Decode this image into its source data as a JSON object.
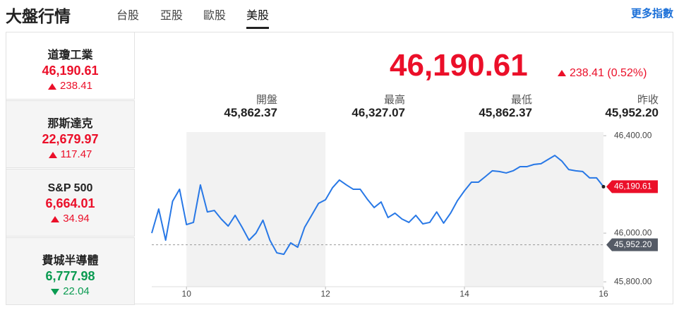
{
  "header": {
    "title": "大盤行情",
    "tabs": [
      "台股",
      "亞股",
      "歐股",
      "美股"
    ],
    "active_tab": 3,
    "more": "更多指數"
  },
  "indices": [
    {
      "name": "道瓊工業",
      "value": "46,190.61",
      "change": "238.41",
      "direction": "up"
    },
    {
      "name": "那斯達克",
      "value": "22,679.97",
      "change": "117.47",
      "direction": "up"
    },
    {
      "name": "S&P 500",
      "value": "6,664.01",
      "change": "34.94",
      "direction": "up"
    },
    {
      "name": "費城半導體",
      "value": "6,777.98",
      "change": "22.04",
      "direction": "down"
    }
  ],
  "active_index": 0,
  "quote": {
    "price": "46,190.61",
    "change": "238.41 (0.52%)",
    "direction": "up",
    "stats": [
      {
        "label": "開盤",
        "value": "45,862.37"
      },
      {
        "label": "最高",
        "value": "46,327.07"
      },
      {
        "label": "最低",
        "value": "45,862.37"
      },
      {
        "label": "昨收",
        "value": "45,952.20"
      }
    ]
  },
  "chart_data": {
    "type": "line",
    "x": [
      9.5,
      9.6,
      9.7,
      9.8,
      9.9,
      10.0,
      10.1,
      10.2,
      10.3,
      10.4,
      10.5,
      10.6,
      10.7,
      10.8,
      10.9,
      11.0,
      11.1,
      11.2,
      11.3,
      11.4,
      11.5,
      11.6,
      11.7,
      11.8,
      11.9,
      12.0,
      12.1,
      12.2,
      12.3,
      12.4,
      12.5,
      12.6,
      12.7,
      12.8,
      12.9,
      13.0,
      13.1,
      13.2,
      13.3,
      13.4,
      13.5,
      13.6,
      13.7,
      13.8,
      13.9,
      14.0,
      14.1,
      14.2,
      14.3,
      14.4,
      14.5,
      14.6,
      14.7,
      14.8,
      14.9,
      15.0,
      15.1,
      15.2,
      15.3,
      15.4,
      15.5,
      15.6,
      15.7,
      15.8,
      15.9,
      16.0
    ],
    "series": [
      {
        "color": "#2878e6",
        "values": [
          46000,
          46099,
          45971,
          46131,
          46180,
          46035,
          46044,
          46198,
          46087,
          46093,
          46058,
          46029,
          46073,
          46024,
          45971,
          46000,
          46053,
          45971,
          45919,
          45913,
          45960,
          45942,
          46024,
          46073,
          46122,
          46137,
          46186,
          46218,
          46198,
          46180,
          46180,
          46140,
          46105,
          46128,
          46064,
          46082,
          46058,
          46044,
          46073,
          46038,
          46044,
          46087,
          46041,
          46082,
          46134,
          46174,
          46209,
          46209,
          46232,
          46256,
          46253,
          46247,
          46256,
          46273,
          46273,
          46282,
          46285,
          46302,
          46319,
          46296,
          46261,
          46256,
          46253,
          46227,
          46227,
          46190.61
        ]
      }
    ],
    "xlim": [
      9.5,
      16
    ],
    "xticks": [
      10,
      12,
      14,
      16
    ],
    "ylim": [
      45780,
      46415
    ],
    "yticks": [
      {
        "value": 45800,
        "label": "45,800.00"
      },
      {
        "value": 46000,
        "label": "46,000.00"
      },
      {
        "value": 46400,
        "label": "46,400.00"
      }
    ],
    "grid": false,
    "reference": {
      "value": 45952.2,
      "label": "45,952.20"
    },
    "end_label": {
      "value": 46190.61,
      "label": "46,190.61"
    }
  }
}
